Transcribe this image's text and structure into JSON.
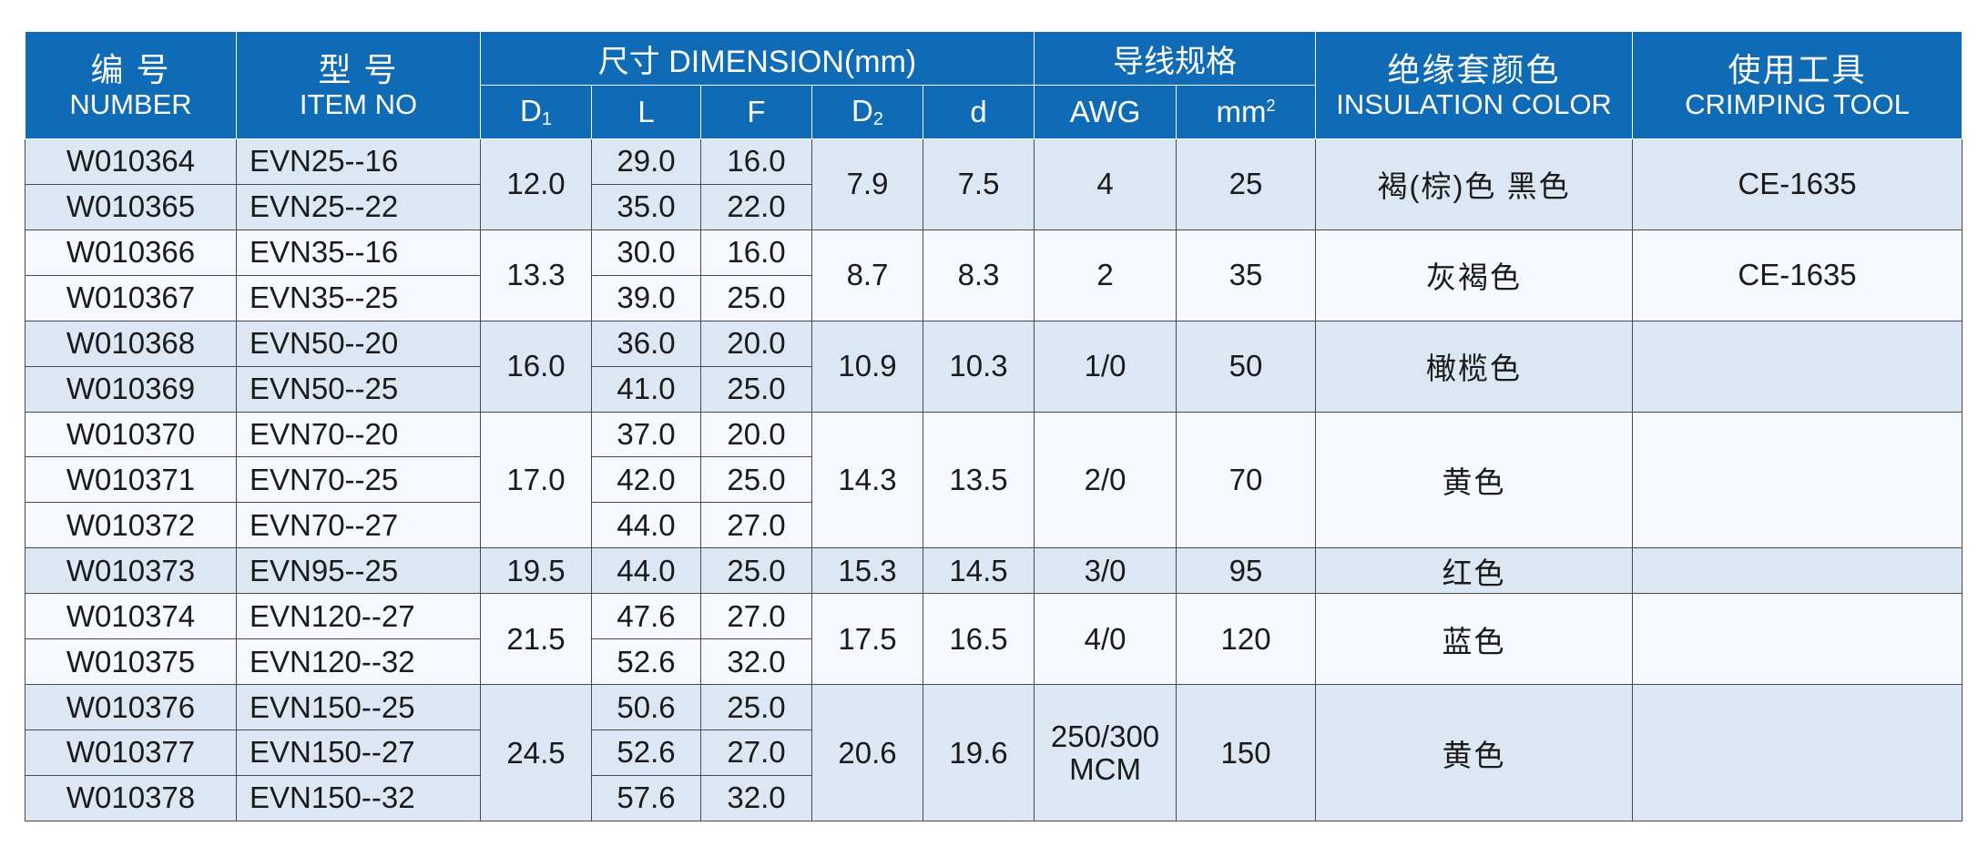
{
  "header": {
    "number": {
      "cn": "编  号",
      "en": "NUMBER"
    },
    "item_no": {
      "cn": "型  号",
      "en": "ITEM NO"
    },
    "dimension": "尺寸 DIMENSION(mm)",
    "dims": {
      "d1": "D",
      "d1_sub": "1",
      "l": "L",
      "f": "F",
      "d2": "D",
      "d2_sub": "2",
      "d_small": "d"
    },
    "wire_spec": "导线规格",
    "awg": "AWG",
    "mm2": "mm",
    "mm2_sup": "2",
    "insulation": {
      "cn": "绝缘套颜色",
      "en": "INSULATION COLOR"
    },
    "tool": {
      "cn": "使用工具",
      "en": "CRIMPING TOOL"
    }
  },
  "rows": [
    {
      "number": "W010364",
      "item": "EVN25--16",
      "l": "29.0",
      "f": "16.0"
    },
    {
      "number": "W010365",
      "item": "EVN25--22",
      "l": "35.0",
      "f": "22.0"
    },
    {
      "number": "W010366",
      "item": "EVN35--16",
      "l": "30.0",
      "f": "16.0"
    },
    {
      "number": "W010367",
      "item": "EVN35--25",
      "l": "39.0",
      "f": "25.0"
    },
    {
      "number": "W010368",
      "item": "EVN50--20",
      "l": "36.0",
      "f": "20.0"
    },
    {
      "number": "W010369",
      "item": "EVN50--25",
      "l": "41.0",
      "f": "25.0"
    },
    {
      "number": "W010370",
      "item": "EVN70--20",
      "l": "37.0",
      "f": "20.0"
    },
    {
      "number": "W010371",
      "item": "EVN70--25",
      "l": "42.0",
      "f": "25.0"
    },
    {
      "number": "W010372",
      "item": "EVN70--27",
      "l": "44.0",
      "f": "27.0"
    },
    {
      "number": "W010373",
      "item": "EVN95--25",
      "l": "44.0",
      "f": "25.0"
    },
    {
      "number": "W010374",
      "item": "EVN120--27",
      "l": "47.6",
      "f": "27.0"
    },
    {
      "number": "W010375",
      "item": "EVN120--32",
      "l": "52.6",
      "f": "32.0"
    },
    {
      "number": "W010376",
      "item": "EVN150--25",
      "l": "50.6",
      "f": "25.0"
    },
    {
      "number": "W010377",
      "item": "EVN150--27",
      "l": "52.6",
      "f": "27.0"
    },
    {
      "number": "W010378",
      "item": "EVN150--32",
      "l": "57.6",
      "f": "32.0"
    }
  ],
  "groups": [
    {
      "d1": "12.0",
      "d2": "7.9",
      "d": "7.5",
      "awg": "4",
      "mm2": "25",
      "color": "褐(棕)色    黑色",
      "tool": "CE-1635"
    },
    {
      "d1": "13.3",
      "d2": "8.7",
      "d": "8.3",
      "awg": "2",
      "mm2": "35",
      "color": "灰褐色",
      "tool": "CE-1635"
    },
    {
      "d1": "16.0",
      "d2": "10.9",
      "d": "10.3",
      "awg": "1/0",
      "mm2": "50",
      "color": "橄榄色",
      "tool": ""
    },
    {
      "d1": "17.0",
      "d2": "14.3",
      "d": "13.5",
      "awg": "2/0",
      "mm2": "70",
      "color": "黄色",
      "tool": ""
    },
    {
      "d1": "19.5",
      "d2": "15.3",
      "d": "14.5",
      "awg": "3/0",
      "mm2": "95",
      "color": "红色",
      "tool": ""
    },
    {
      "d1": "21.5",
      "d2": "17.5",
      "d": "16.5",
      "awg": "4/0",
      "mm2": "120",
      "color": "蓝色",
      "tool": ""
    },
    {
      "d1": "24.5",
      "d2": "20.6",
      "d": "19.6",
      "awg": "250/300",
      "awg2": "MCM",
      "mm2": "150",
      "color": "黄色",
      "tool": ""
    }
  ],
  "colors": {
    "header_bg": "#0f6bb5",
    "row_light": "#dce7f4",
    "row_white": "#f5f8fc"
  }
}
